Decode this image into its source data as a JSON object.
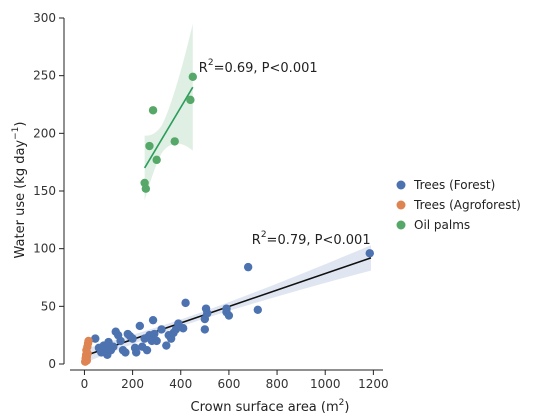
{
  "chart_data": {
    "type": "scatter",
    "xlabel": "Crown surface area (m",
    "xlabel_sup": "2",
    "xlabel_close": ")",
    "ylabel": "Water use (kg day",
    "ylabel_sup": "−1",
    "ylabel_close": ")",
    "xlim": [
      -60,
      1240
    ],
    "ylim": [
      0,
      300
    ],
    "xticks": [
      0,
      200,
      400,
      600,
      800,
      1000,
      1200
    ],
    "yticks": [
      0,
      50,
      100,
      150,
      200,
      250,
      300
    ],
    "grid": false,
    "legend_position": "right",
    "series": [
      {
        "name": "Trees (Forest)",
        "color": "#4c72b0",
        "points": [
          [
            45,
            22
          ],
          [
            60,
            14
          ],
          [
            70,
            10
          ],
          [
            80,
            16
          ],
          [
            90,
            13
          ],
          [
            95,
            8
          ],
          [
            100,
            19
          ],
          [
            110,
            12
          ],
          [
            120,
            15
          ],
          [
            130,
            28
          ],
          [
            140,
            25
          ],
          [
            150,
            20
          ],
          [
            160,
            12
          ],
          [
            170,
            10
          ],
          [
            180,
            26
          ],
          [
            190,
            24
          ],
          [
            200,
            22
          ],
          [
            210,
            14
          ],
          [
            215,
            10
          ],
          [
            230,
            33
          ],
          [
            240,
            15
          ],
          [
            250,
            22
          ],
          [
            260,
            12
          ],
          [
            270,
            25
          ],
          [
            280,
            20
          ],
          [
            285,
            38
          ],
          [
            290,
            26
          ],
          [
            300,
            20
          ],
          [
            320,
            30
          ],
          [
            340,
            16
          ],
          [
            350,
            25
          ],
          [
            360,
            22
          ],
          [
            370,
            27
          ],
          [
            380,
            30
          ],
          [
            390,
            35
          ],
          [
            410,
            31
          ],
          [
            420,
            53
          ],
          [
            500,
            30
          ],
          [
            500,
            39
          ],
          [
            505,
            48
          ],
          [
            510,
            44
          ],
          [
            590,
            45
          ],
          [
            590,
            48
          ],
          [
            600,
            42
          ],
          [
            680,
            84
          ],
          [
            720,
            47
          ],
          [
            1185,
            96
          ]
        ]
      },
      {
        "name": "Trees (Agroforest)",
        "color": "#dd8452",
        "points": [
          [
            3,
            2
          ],
          [
            5,
            5
          ],
          [
            7,
            8
          ],
          [
            8,
            12
          ],
          [
            10,
            6
          ],
          [
            12,
            15
          ],
          [
            13,
            9
          ],
          [
            15,
            18
          ],
          [
            17,
            20
          ],
          [
            10,
            3
          ]
        ]
      },
      {
        "name": "Oil palms",
        "color": "#55a868",
        "points": [
          [
            250,
            157
          ],
          [
            255,
            152
          ],
          [
            270,
            189
          ],
          [
            285,
            220
          ],
          [
            300,
            177
          ],
          [
            375,
            193
          ],
          [
            440,
            229
          ],
          [
            450,
            249
          ]
        ]
      }
    ],
    "fits": [
      {
        "series": "Trees (Forest)",
        "line_color": "#111111",
        "band_color": "#4c72b0",
        "x": [
          0,
          1190
        ],
        "y": [
          7,
          92
        ],
        "band_halfwidth": [
          3,
          11
        ]
      },
      {
        "series": "Oil palms",
        "line_color": "#2a9d5a",
        "band_color": "#55a868",
        "x": [
          250,
          450
        ],
        "y": [
          170,
          240
        ],
        "band_halfwidth": [
          12,
          55
        ]
      }
    ],
    "annotations": [
      {
        "pre": "R",
        "sup": "2",
        "post": "=0.69, P<0.001",
        "x": 475,
        "y": 253
      },
      {
        "pre": "R",
        "sup": "2",
        "post": "=0.79, P<0.001",
        "x": 695,
        "y": 104
      }
    ]
  }
}
